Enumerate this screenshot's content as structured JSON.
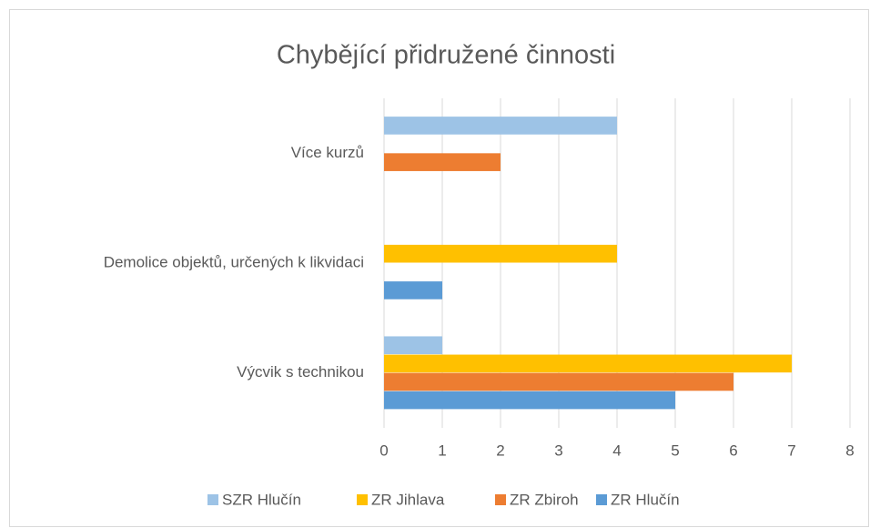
{
  "chart_data": {
    "type": "bar",
    "orientation": "horizontal",
    "title": "Chybějící přidružené činnosti",
    "categories": [
      "Výcvik s technikou",
      "Demolice objektů, určených k likvidaci",
      "Více kurzů"
    ],
    "series": [
      {
        "name": "SZR Hlučín",
        "color": "#9dc3e6",
        "values": [
          1,
          0,
          4
        ]
      },
      {
        "name": "ZR Jihlava",
        "color": "#ffc000",
        "values": [
          7,
          4,
          0
        ]
      },
      {
        "name": "ZR Zbiroh",
        "color": "#ed7d31",
        "values": [
          6,
          0,
          2
        ]
      },
      {
        "name": "ZR Hlučín",
        "color": "#5b9bd5",
        "values": [
          5,
          1,
          0
        ]
      }
    ],
    "xlim": [
      0,
      8
    ],
    "xticks": [
      0,
      1,
      2,
      3,
      4,
      5,
      6,
      7,
      8
    ],
    "grid": true,
    "legend": "bottom"
  }
}
